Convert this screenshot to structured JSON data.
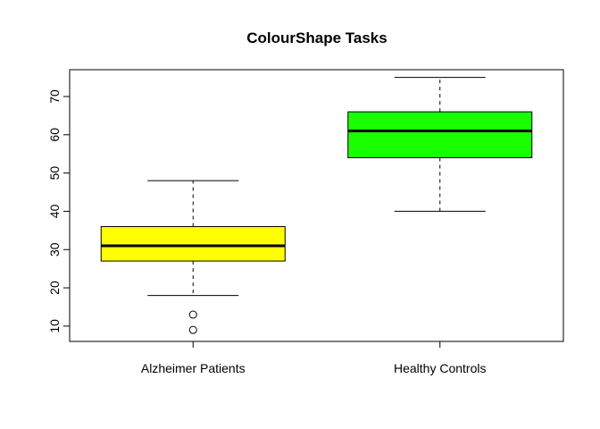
{
  "chart_data": {
    "type": "boxplot",
    "title": "ColourShape Tasks",
    "xlabel": "",
    "ylabel": "",
    "categories": [
      "Alzheimer Patients",
      "Healthy Controls"
    ],
    "boxes": [
      {
        "min": 18,
        "q1": 27,
        "median": 31,
        "q3": 36,
        "max": 48,
        "outliers": [
          13,
          9
        ],
        "color": "#ffff00"
      },
      {
        "min": 40,
        "q1": 54,
        "median": 61,
        "q3": 66,
        "max": 75,
        "outliers": [],
        "color": "#1aff00"
      }
    ],
    "yticks": [
      10,
      20,
      30,
      40,
      50,
      60,
      70
    ],
    "ylim": [
      6,
      77
    ],
    "grid": false
  }
}
